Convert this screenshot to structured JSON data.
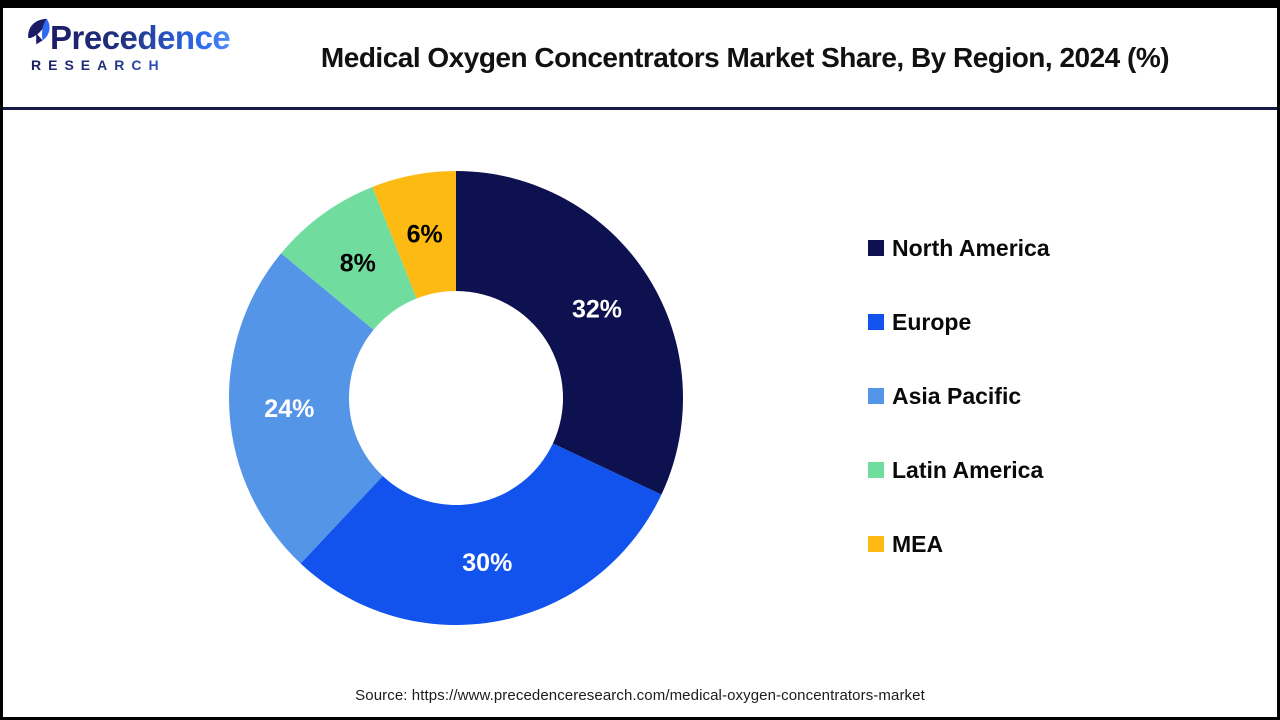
{
  "header": {
    "logo": {
      "wordmark": "Precedence",
      "subtitle": "RESEARCH"
    },
    "title": "Medical Oxygen Concentrators Market Share, By Region, 2024 (%)"
  },
  "chart_data": {
    "type": "pie",
    "subtype": "donut",
    "title": "Medical Oxygen Concentrators Market Share, By Region, 2024 (%)",
    "categories": [
      "North America",
      "Europe",
      "Asia Pacific",
      "Latin America",
      "MEA"
    ],
    "values": [
      32,
      30,
      24,
      8,
      6
    ],
    "unit": "%",
    "data_labels": [
      "32%",
      "30%",
      "24%",
      "8%",
      "6%"
    ],
    "colors": [
      "#0d1150",
      "#1253ed",
      "#5495e8",
      "#70dd9e",
      "#fcba12"
    ],
    "data_label_colors": [
      "#ffffff",
      "#ffffff",
      "#ffffff",
      "#000000",
      "#000000"
    ],
    "start_angle_deg": 0,
    "direction": "clockwise",
    "inner_radius_ratio": 0.47,
    "legend_position": "right",
    "grid": false
  },
  "footer": {
    "source": "Source: https://www.precedenceresearch.com/medical-oxygen-concentrators-market"
  },
  "style": {
    "frame_border": "#000000",
    "divider": "#191947",
    "logo_navy": "#1c1c66",
    "logo_blue": "#2f6bf0",
    "title_color": "#111111"
  }
}
